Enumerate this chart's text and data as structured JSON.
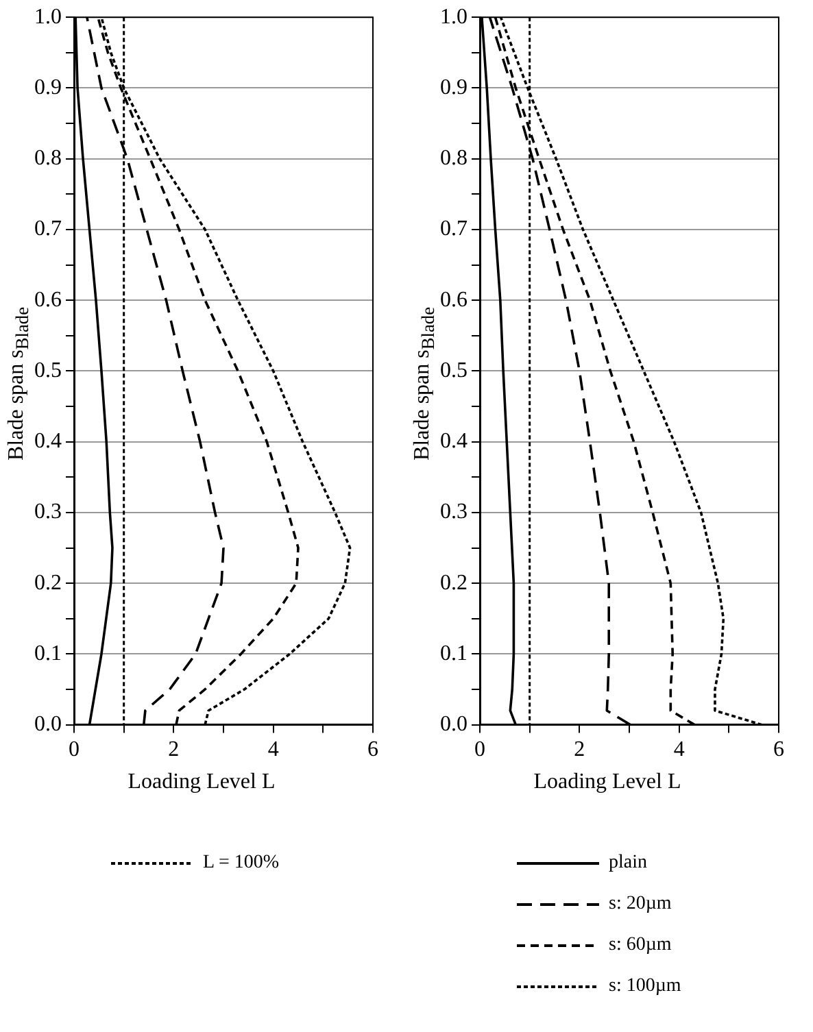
{
  "chart_data": [
    {
      "type": "line",
      "xlabel": "Loading Level L",
      "ylabel": "Blade span s$_{Blade}$",
      "xlim": [
        0,
        6
      ],
      "xticks": [
        0,
        {
          "value": 1,
          "label": null
        },
        2,
        {
          "value": 3,
          "label": null
        },
        4,
        {
          "value": 5,
          "label": null
        },
        6
      ],
      "ylim": [
        0,
        1
      ],
      "yticks": [
        {
          "value": 0,
          "label": "0.0"
        },
        {
          "value": 0.05,
          "label": null
        },
        {
          "value": 0.1,
          "label": "0.1"
        },
        {
          "value": 0.15,
          "label": null
        },
        {
          "value": 0.2,
          "label": "0.2"
        },
        {
          "value": 0.25,
          "label": null
        },
        {
          "value": 0.3,
          "label": "0.3"
        },
        {
          "value": 0.35,
          "label": null
        },
        {
          "value": 0.4,
          "label": "0.4"
        },
        {
          "value": 0.45,
          "label": null
        },
        {
          "value": 0.5,
          "label": "0.5"
        },
        {
          "value": 0.55,
          "label": null
        },
        {
          "value": 0.6,
          "label": "0.6"
        },
        {
          "value": 0.65,
          "label": null
        },
        {
          "value": 0.7,
          "label": "0.7"
        },
        {
          "value": 0.75,
          "label": null
        },
        {
          "value": 0.8,
          "label": "0.8"
        },
        {
          "value": 0.85,
          "label": null
        },
        {
          "value": 0.9,
          "label": "0.9"
        },
        {
          "value": 0.95,
          "label": null
        },
        {
          "value": 1,
          "label": "1.0"
        }
      ],
      "grid": "y",
      "legend": "bottom",
      "marker": "none",
      "ref_lines": [
        {
          "axis": "x",
          "value": 1,
          "label": "L = 100%",
          "line_style": "dotted",
          "color": "#000000"
        }
      ],
      "series": [
        {
          "color": "#000000",
          "line_style": "solid",
          "x": [
            0.31,
            0.55,
            0.74,
            0.77,
            0.72,
            0.65,
            0.55,
            0.44,
            0.31,
            0.18,
            0.07,
            0.03
          ],
          "values": [
            0,
            0.1,
            0.2,
            0.25,
            0.3,
            0.4,
            0.5,
            0.6,
            0.7,
            0.8,
            0.9,
            1
          ]
        },
        {
          "color": "#000000",
          "line_style": "dashed",
          "x": [
            1.4,
            1.43,
            1.92,
            2.44,
            2.96,
            3.0,
            2.83,
            2.53,
            2.18,
            1.85,
            1.46,
            1.07,
            0.81,
            0.55,
            0.26
          ],
          "values": [
            0,
            0.02,
            0.05,
            0.1,
            0.2,
            0.25,
            0.3,
            0.4,
            0.5,
            0.6,
            0.7,
            0.8,
            0.85,
            0.9,
            1
          ]
        },
        {
          "color": "#000000",
          "line_style": "dashed",
          "x": [
            2.05,
            2.11,
            2.63,
            3.35,
            4.0,
            4.46,
            4.5,
            4.3,
            3.87,
            3.29,
            2.63,
            2.11,
            1.53,
            0.94,
            0.68,
            0.48
          ],
          "values": [
            0,
            0.02,
            0.05,
            0.1,
            0.15,
            0.2,
            0.25,
            0.3,
            0.4,
            0.5,
            0.6,
            0.7,
            0.8,
            0.9,
            0.95,
            1
          ]
        },
        {
          "color": "#000000",
          "line_style": "dotted",
          "x": [
            2.63,
            2.7,
            3.42,
            4.33,
            5.11,
            5.44,
            5.54,
            5.24,
            4.59,
            4.0,
            3.29,
            2.63,
            1.72,
            1.0,
            0.74,
            0.55
          ],
          "values": [
            0,
            0.02,
            0.05,
            0.1,
            0.15,
            0.2,
            0.25,
            0.3,
            0.4,
            0.5,
            0.6,
            0.7,
            0.8,
            0.9,
            0.95,
            1
          ]
        }
      ]
    },
    {
      "type": "line",
      "xlabel": "Loading Level L",
      "ylabel": "Blade span s$_{Blade}$",
      "xlim": [
        0,
        6
      ],
      "xticks": [
        0,
        {
          "value": 1,
          "label": null
        },
        2,
        {
          "value": 3,
          "label": null
        },
        4,
        {
          "value": 5,
          "label": null
        },
        6
      ],
      "ylim": [
        0,
        1
      ],
      "yticks": [
        {
          "value": 0,
          "label": "0.0"
        },
        {
          "value": 0.05,
          "label": null
        },
        {
          "value": 0.1,
          "label": "0.1"
        },
        {
          "value": 0.15,
          "label": null
        },
        {
          "value": 0.2,
          "label": "0.2"
        },
        {
          "value": 0.25,
          "label": null
        },
        {
          "value": 0.3,
          "label": "0.3"
        },
        {
          "value": 0.35,
          "label": null
        },
        {
          "value": 0.4,
          "label": "0.4"
        },
        {
          "value": 0.45,
          "label": null
        },
        {
          "value": 0.5,
          "label": "0.5"
        },
        {
          "value": 0.55,
          "label": null
        },
        {
          "value": 0.6,
          "label": "0.6"
        },
        {
          "value": 0.65,
          "label": null
        },
        {
          "value": 0.7,
          "label": "0.7"
        },
        {
          "value": 0.75,
          "label": null
        },
        {
          "value": 0.8,
          "label": "0.8"
        },
        {
          "value": 0.85,
          "label": null
        },
        {
          "value": 0.9,
          "label": "0.9"
        },
        {
          "value": 0.95,
          "label": null
        },
        {
          "value": 1,
          "label": "1.0"
        }
      ],
      "grid": "y",
      "legend": "bottom",
      "marker": "none",
      "ref_lines": [
        {
          "axis": "x",
          "value": 1,
          "line_style": "dotted",
          "color": "#000000"
        }
      ],
      "series": [
        {
          "name": "plain",
          "color": "#000000",
          "line_style": "solid",
          "x": [
            0.72,
            0.61,
            0.65,
            0.68,
            0.68,
            0.61,
            0.54,
            0.47,
            0.41,
            0.31,
            0.22,
            0.14,
            0.04
          ],
          "values": [
            0,
            0.02,
            0.05,
            0.1,
            0.2,
            0.3,
            0.4,
            0.5,
            0.6,
            0.7,
            0.8,
            0.9,
            1
          ]
        },
        {
          "name": "s: 20µm",
          "color": "#000000",
          "line_style": "dashed",
          "x": [
            3.02,
            2.55,
            2.57,
            2.59,
            2.59,
            2.41,
            2.21,
            2.0,
            1.73,
            1.4,
            1.06,
            0.65,
            0.2
          ],
          "values": [
            0,
            0.02,
            0.05,
            0.1,
            0.2,
            0.3,
            0.4,
            0.5,
            0.6,
            0.7,
            0.8,
            0.9,
            1
          ]
        },
        {
          "name": "s: 60µm",
          "color": "#000000",
          "line_style": "dashed",
          "x": [
            4.31,
            3.83,
            3.83,
            3.87,
            3.83,
            3.47,
            3.09,
            2.62,
            2.21,
            1.67,
            1.19,
            0.72,
            0.31
          ],
          "values": [
            0,
            0.02,
            0.05,
            0.1,
            0.2,
            0.3,
            0.4,
            0.5,
            0.6,
            0.7,
            0.8,
            0.9,
            1
          ]
        },
        {
          "name": "s: 100µm",
          "color": "#000000",
          "line_style": "dotted",
          "x": [
            5.66,
            4.72,
            4.72,
            4.85,
            4.89,
            4.78,
            4.44,
            3.9,
            3.29,
            2.68,
            2.07,
            1.53,
            0.96,
            0.42
          ],
          "values": [
            0,
            0.02,
            0.05,
            0.1,
            0.15,
            0.2,
            0.3,
            0.4,
            0.5,
            0.6,
            0.7,
            0.8,
            0.9,
            1
          ]
        }
      ]
    }
  ]
}
